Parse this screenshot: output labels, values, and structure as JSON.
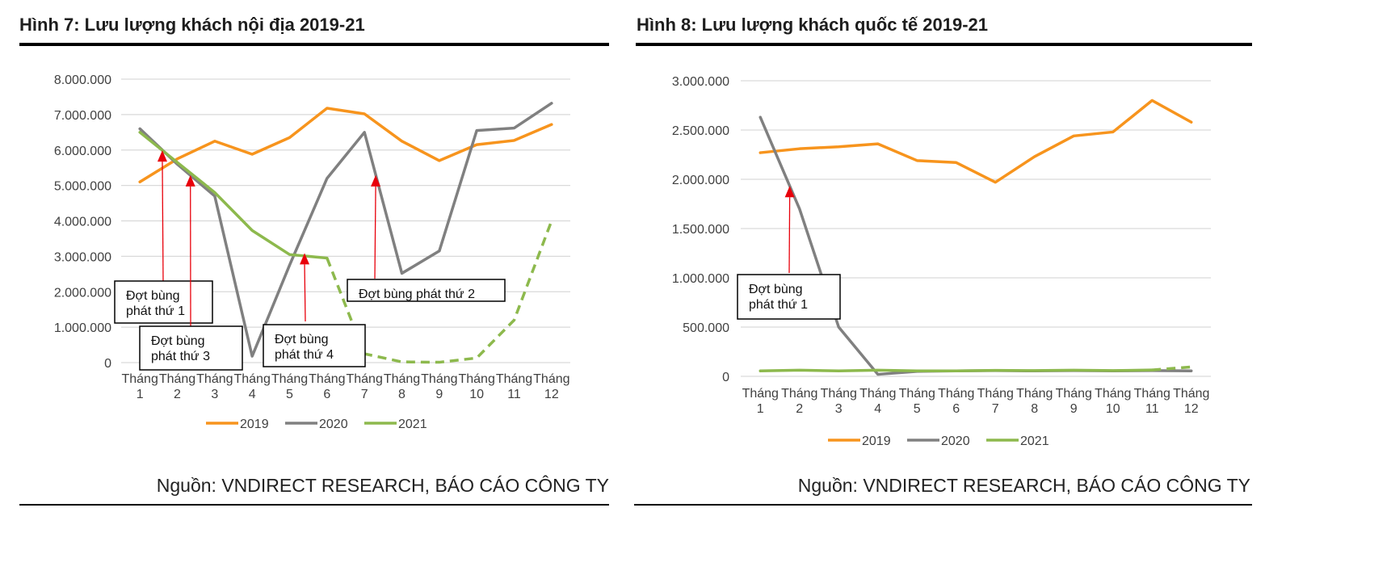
{
  "colors": {
    "2019": "#F7941D",
    "2020": "#808080",
    "2021": "#8DB94D",
    "grid": "#D9D9D9",
    "arrow": "#E8000B"
  },
  "source_label": "Nguồn: VNDIRECT RESEARCH, BÁO CÁO CÔNG TY",
  "chart_data": [
    {
      "type": "line",
      "title": "Hình 7: Lưu lượng khách nội địa 2019-21",
      "categories": [
        [
          "Tháng",
          "1"
        ],
        [
          "Tháng",
          "2"
        ],
        [
          "Tháng",
          "3"
        ],
        [
          "Tháng",
          "4"
        ],
        [
          "Tháng",
          "5"
        ],
        [
          "Tháng",
          "6"
        ],
        [
          "Tháng",
          "7"
        ],
        [
          "Tháng",
          "8"
        ],
        [
          "Tháng",
          "9"
        ],
        [
          "Tháng",
          "10"
        ],
        [
          "Tháng",
          "11"
        ],
        [
          "Tháng",
          "12"
        ]
      ],
      "ylim": [
        0,
        8000000
      ],
      "yticks": [
        0,
        1000000,
        2000000,
        3000000,
        4000000,
        5000000,
        6000000,
        7000000,
        8000000
      ],
      "ytick_labels": [
        "0",
        "1.000.000",
        "2.000.000",
        "3.000.000",
        "4.000.000",
        "5.000.000",
        "6.000.000",
        "7.000.000",
        "8.000.000"
      ],
      "grid": true,
      "legend": "bottom",
      "series": [
        {
          "name": "2019",
          "values": [
            5100000,
            5750000,
            6250000,
            5880000,
            6350000,
            7180000,
            7020000,
            6250000,
            5700000,
            6150000,
            6270000,
            6720000
          ]
        },
        {
          "name": "2020",
          "values": [
            6600000,
            5600000,
            4700000,
            180000,
            2750000,
            5200000,
            6500000,
            2520000,
            3150000,
            6550000,
            6620000,
            7320000
          ]
        },
        {
          "name": "2021",
          "values": [
            6500000,
            5650000,
            4800000,
            3730000,
            3050000,
            2950000,
            250000,
            20000,
            10000,
            130000,
            1200000,
            4000000
          ],
          "dashed_from_index": 5
        }
      ],
      "annotations": [
        {
          "lines": [
            "Đợt bùng",
            "phát thứ 1"
          ],
          "month": 1.6,
          "value": 5900000
        },
        {
          "lines": [
            "Đợt bùng",
            "phát thứ 3"
          ],
          "month": 2.35,
          "value": 5200000
        },
        {
          "lines": [
            "Đợt bùng",
            "phát thứ 4"
          ],
          "month": 5.4,
          "value": 3000000
        },
        {
          "lines": [
            "Đợt bùng phát thứ 2"
          ],
          "month": 7.3,
          "value": 5200000
        }
      ]
    },
    {
      "type": "line",
      "title": "Hình 8: Lưu lượng khách quốc tế 2019-21",
      "categories": [
        [
          "Tháng",
          "1"
        ],
        [
          "Tháng",
          "2"
        ],
        [
          "Tháng",
          "3"
        ],
        [
          "Tháng",
          "4"
        ],
        [
          "Tháng",
          "5"
        ],
        [
          "Tháng",
          "6"
        ],
        [
          "Tháng",
          "7"
        ],
        [
          "Tháng",
          "8"
        ],
        [
          "Tháng",
          "9"
        ],
        [
          "Tháng",
          "10"
        ],
        [
          "Tháng",
          "11"
        ],
        [
          "Tháng",
          "12"
        ]
      ],
      "ylim": [
        0,
        3000000
      ],
      "yticks": [
        0,
        500000,
        1000000,
        1500000,
        2000000,
        2500000,
        3000000
      ],
      "ytick_labels": [
        "0",
        "500.000",
        "1.000.000",
        "1.500.000",
        "2.000.000",
        "2.500.000",
        "3.000.000"
      ],
      "grid": true,
      "legend": "bottom",
      "series": [
        {
          "name": "2019",
          "values": [
            2270000,
            2310000,
            2330000,
            2360000,
            2190000,
            2170000,
            1970000,
            2230000,
            2440000,
            2480000,
            2800000,
            2580000
          ]
        },
        {
          "name": "2020",
          "values": [
            2630000,
            1700000,
            500000,
            20000,
            50000,
            55000,
            58000,
            55000,
            58000,
            55000,
            58000,
            55000
          ]
        },
        {
          "name": "2021",
          "values": [
            55000,
            62000,
            55000,
            62000,
            55000,
            55000,
            60000,
            58000,
            62000,
            58000,
            65000,
            95000
          ],
          "dashed_from_index": 10
        }
      ],
      "annotations": [
        {
          "lines": [
            "Đợt bùng",
            "phát thứ 1"
          ],
          "month": 1.75,
          "value": 1900000
        }
      ]
    }
  ]
}
